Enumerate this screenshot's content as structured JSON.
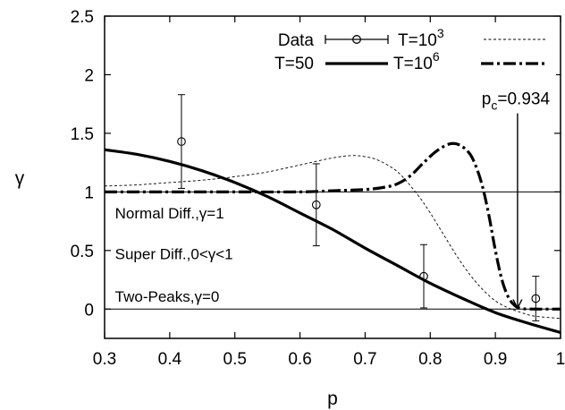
{
  "chart_data": {
    "type": "line",
    "xlabel": "p",
    "ylabel": "γ",
    "xlim": [
      0.3,
      1.0
    ],
    "ylim": [
      -0.25,
      2.5
    ],
    "x_ticks": [
      0.3,
      0.4,
      0.5,
      0.6,
      0.7,
      0.8,
      0.9,
      1.0
    ],
    "x_tick_labels": [
      "0.3",
      "0.4",
      "0.5",
      "0.6",
      "0.7",
      "0.8",
      "0.9",
      "1"
    ],
    "y_ticks": [
      0,
      0.5,
      1,
      1.5,
      2,
      2.5
    ],
    "y_tick_labels": [
      "0",
      "0.5",
      "1",
      "1.5",
      "2",
      "2.5"
    ],
    "grid": false,
    "legend_position": "top-right",
    "reference_lines": [
      1,
      0
    ],
    "series": [
      {
        "name": "Data",
        "legend_label": "Data",
        "style": "errorbar-circle",
        "points": [
          {
            "x": 0.418,
            "y": 1.43,
            "err": 0.4
          },
          {
            "x": 0.625,
            "y": 0.89,
            "err": 0.35
          },
          {
            "x": 0.79,
            "y": 0.28,
            "err": 0.27
          },
          {
            "x": 0.962,
            "y": 0.09,
            "err": 0.19
          }
        ]
      },
      {
        "name": "T=10^3",
        "legend_label": "T=10",
        "legend_sup": "3",
        "style": "thin-dashed",
        "x": [
          0.3,
          0.35,
          0.4,
          0.45,
          0.5,
          0.55,
          0.6,
          0.65,
          0.68,
          0.7,
          0.72,
          0.75,
          0.78,
          0.8,
          0.82,
          0.84,
          0.86,
          0.88,
          0.9,
          0.92,
          0.94,
          0.96,
          1.0
        ],
        "y": [
          1.05,
          1.06,
          1.08,
          1.1,
          1.13,
          1.17,
          1.23,
          1.29,
          1.31,
          1.3,
          1.27,
          1.17,
          0.98,
          0.82,
          0.64,
          0.46,
          0.3,
          0.17,
          0.07,
          0.01,
          -0.03,
          -0.06,
          -0.08
        ]
      },
      {
        "name": "T=50",
        "legend_label": "T=50",
        "style": "thick-solid",
        "x": [
          0.3,
          0.35,
          0.4,
          0.45,
          0.5,
          0.55,
          0.6,
          0.65,
          0.7,
          0.75,
          0.8,
          0.85,
          0.9,
          0.95,
          1.0
        ],
        "y": [
          1.36,
          1.32,
          1.26,
          1.18,
          1.08,
          0.96,
          0.82,
          0.68,
          0.52,
          0.37,
          0.22,
          0.09,
          -0.03,
          -0.12,
          -0.2
        ]
      },
      {
        "name": "T=10^6",
        "legend_label": "T=10",
        "legend_sup": "6",
        "style": "thick-dashdot",
        "x": [
          0.3,
          0.4,
          0.5,
          0.6,
          0.65,
          0.7,
          0.73,
          0.75,
          0.77,
          0.79,
          0.81,
          0.83,
          0.845,
          0.86,
          0.87,
          0.88,
          0.89,
          0.9,
          0.91,
          0.92,
          0.93,
          0.94,
          0.96,
          1.0
        ],
        "y": [
          1.0,
          1.0,
          1.0,
          1.0,
          1.01,
          1.02,
          1.04,
          1.07,
          1.14,
          1.25,
          1.35,
          1.41,
          1.4,
          1.33,
          1.22,
          1.05,
          0.8,
          0.5,
          0.25,
          0.1,
          0.03,
          0.005,
          0.0,
          0.0
        ]
      }
    ],
    "annotations": [
      {
        "text": "Normal Diff.,γ=1",
        "x": 0.305,
        "y": 0.82
      },
      {
        "text": "Super Diff.,0<γ<1",
        "x": 0.305,
        "y": 0.47
      },
      {
        "text": "Two-Peaks,γ=0",
        "x": 0.305,
        "y": 0.11
      }
    ],
    "arrow_annotation": {
      "label_main": "p",
      "label_sub": "c",
      "label_rest": "=0.934",
      "from": {
        "x": 0.934,
        "y": 1.67
      },
      "to": {
        "x": 0.934,
        "y": 0.0
      }
    }
  }
}
